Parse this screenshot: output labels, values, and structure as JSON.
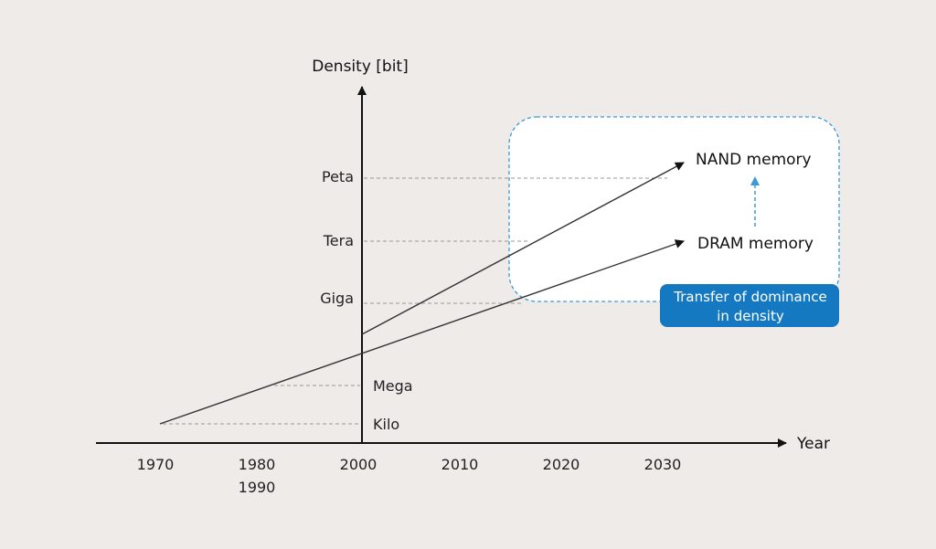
{
  "axes": {
    "y_title": "Density [bit]",
    "x_title": "Year",
    "y_levels": [
      "Kilo",
      "Mega",
      "Giga",
      "Tera",
      "Peta"
    ],
    "x_ticks": [
      "1970",
      "1980",
      "1990",
      "2000",
      "2010",
      "2020",
      "2030"
    ]
  },
  "series": {
    "nand": "NAND memory",
    "dram": "DRAM memory"
  },
  "callout": {
    "line1": "Transfer of dominance",
    "line2": "in density"
  },
  "colors": {
    "background": "#efebe8",
    "accent_blue": "#1479c0",
    "dashed_blue": "#3a9ad9",
    "line": "#333333"
  }
}
